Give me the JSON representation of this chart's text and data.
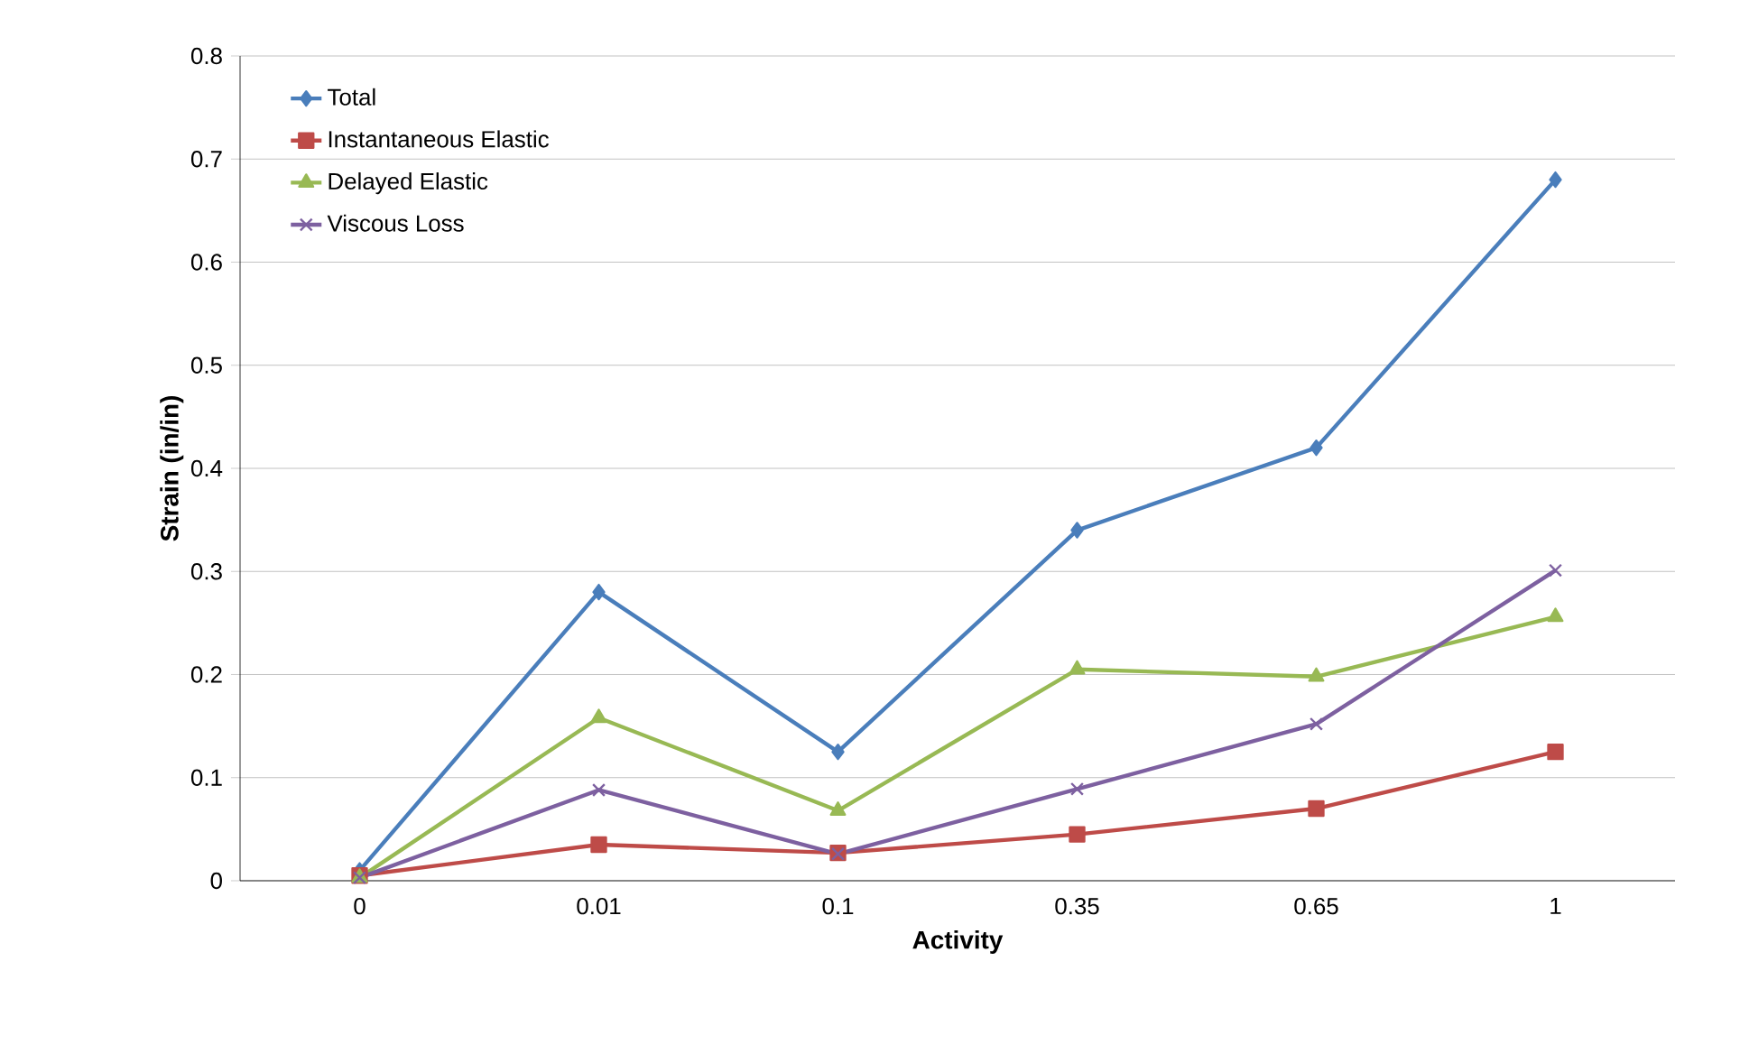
{
  "chart_data": {
    "type": "line",
    "xlabel": "Activity",
    "ylabel": "Strain (in/in)",
    "categories": [
      "0",
      "0.01",
      "0.1",
      "0.35",
      "0.65",
      "1"
    ],
    "ylim": [
      0,
      0.8
    ],
    "yticks": [
      0,
      0.1,
      0.2,
      0.3,
      0.4,
      0.5,
      0.6,
      0.7,
      0.8
    ],
    "grid": "y",
    "legend": "top left",
    "series": [
      {
        "name": "Total",
        "color": "#4a7ebb",
        "marker": "diamond",
        "values": [
          0.01,
          0.28,
          0.125,
          0.34,
          0.42,
          0.68
        ]
      },
      {
        "name": "Instantaneous Elastic",
        "color": "#be4b48",
        "marker": "square",
        "values": [
          0.005,
          0.035,
          0.027,
          0.045,
          0.07,
          0.125
        ]
      },
      {
        "name": "Delayed Elastic",
        "color": "#98b954",
        "marker": "triangle",
        "values": [
          0.003,
          0.158,
          0.068,
          0.205,
          0.198,
          0.256
        ]
      },
      {
        "name": "Viscous Loss",
        "color": "#7d60a0",
        "marker": "cross",
        "values": [
          0.003,
          0.088,
          0.026,
          0.089,
          0.152,
          0.301
        ]
      }
    ]
  }
}
